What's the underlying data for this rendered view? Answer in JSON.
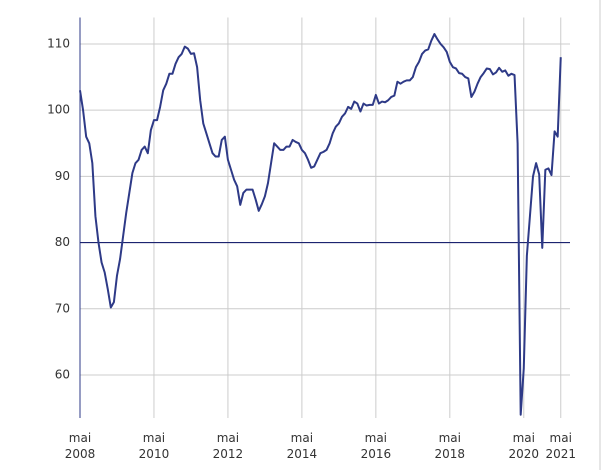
{
  "chart_data": {
    "type": "line",
    "color": "#2e3a87",
    "x": [
      "2008-05",
      "2008-06",
      "2008-07",
      "2008-08",
      "2008-09",
      "2008-10",
      "2008-11",
      "2008-12",
      "2009-01",
      "2009-02",
      "2009-03",
      "2009-04",
      "2009-05",
      "2009-06",
      "2009-07",
      "2009-08",
      "2009-09",
      "2009-10",
      "2009-11",
      "2009-12",
      "2010-01",
      "2010-02",
      "2010-03",
      "2010-04",
      "2010-05",
      "2010-06",
      "2010-07",
      "2010-08",
      "2010-09",
      "2010-10",
      "2010-11",
      "2010-12",
      "2011-01",
      "2011-02",
      "2011-03",
      "2011-04",
      "2011-05",
      "2011-06",
      "2011-07",
      "2011-08",
      "2011-09",
      "2011-10",
      "2011-11",
      "2011-12",
      "2012-01",
      "2012-02",
      "2012-03",
      "2012-04",
      "2012-05",
      "2012-06",
      "2012-07",
      "2012-08",
      "2012-09",
      "2012-10",
      "2012-11",
      "2012-12",
      "2013-01",
      "2013-02",
      "2013-03",
      "2013-04",
      "2013-05",
      "2013-06",
      "2013-07",
      "2013-08",
      "2013-09",
      "2013-10",
      "2013-11",
      "2013-12",
      "2014-01",
      "2014-02",
      "2014-03",
      "2014-04",
      "2014-05",
      "2014-06",
      "2014-07",
      "2014-08",
      "2014-09",
      "2014-10",
      "2014-11",
      "2014-12",
      "2015-01",
      "2015-02",
      "2015-03",
      "2015-04",
      "2015-05",
      "2015-06",
      "2015-07",
      "2015-08",
      "2015-09",
      "2015-10",
      "2015-11",
      "2015-12",
      "2016-01",
      "2016-02",
      "2016-03",
      "2016-04",
      "2016-05",
      "2016-06",
      "2016-07",
      "2016-08",
      "2016-09",
      "2016-10",
      "2016-11",
      "2016-12",
      "2017-01",
      "2017-02",
      "2017-03",
      "2017-04",
      "2017-05",
      "2017-06",
      "2017-07",
      "2017-08",
      "2017-09",
      "2017-10",
      "2017-11",
      "2017-12",
      "2018-01",
      "2018-02",
      "2018-03",
      "2018-04",
      "2018-05",
      "2018-06",
      "2018-07",
      "2018-08",
      "2018-09",
      "2018-10",
      "2018-11",
      "2018-12",
      "2019-01",
      "2019-02",
      "2019-03",
      "2019-04",
      "2019-05",
      "2019-06",
      "2019-07",
      "2019-08",
      "2019-09",
      "2019-10",
      "2019-11",
      "2019-12",
      "2020-01",
      "2020-02",
      "2020-03",
      "2020-04",
      "2020-05",
      "2020-06",
      "2020-07",
      "2020-08",
      "2020-09",
      "2020-10",
      "2020-11",
      "2020-12",
      "2021-01",
      "2021-02",
      "2021-03",
      "2021-04",
      "2021-05"
    ],
    "values": [
      103,
      100,
      96,
      95,
      92,
      84,
      80,
      77,
      75.5,
      73,
      70.2,
      71,
      75,
      77.5,
      81,
      84.5,
      87.5,
      90.5,
      92,
      92.5,
      94,
      94.5,
      93.5,
      97,
      98.5,
      98.5,
      100.5,
      103,
      104,
      105.5,
      105.5,
      107,
      108,
      108.5,
      109.6,
      109.3,
      108.5,
      108.6,
      106.5,
      101.5,
      98,
      96.5,
      95,
      93.5,
      93,
      93,
      95.5,
      96,
      92.5,
      91,
      89.5,
      88.5,
      85.7,
      87.5,
      88,
      88,
      88,
      86.5,
      84.8,
      85.8,
      87,
      89,
      92,
      95,
      94.5,
      94,
      94,
      94.5,
      94.5,
      95.5,
      95.2,
      95,
      94,
      93.5,
      92.5,
      91.3,
      91.5,
      92.5,
      93.5,
      93.7,
      94,
      95,
      96.5,
      97.5,
      98,
      99,
      99.5,
      100.5,
      100.2,
      101.3,
      101,
      99.8,
      101,
      100.7,
      100.8,
      100.8,
      102.3,
      101,
      101.3,
      101.2,
      101.5,
      102,
      102.2,
      104.3,
      104,
      104.3,
      104.5,
      104.5,
      105,
      106.5,
      107.3,
      108.5,
      109,
      109.2,
      110.5,
      111.5,
      110.7,
      110,
      109.5,
      108.8,
      107.3,
      106.5,
      106.3,
      105.6,
      105.5,
      105,
      104.8,
      102,
      102.8,
      104,
      105,
      105.6,
      106.3,
      106.2,
      105.4,
      105.7,
      106.4,
      105.8,
      106,
      105.2,
      105.5,
      105.3,
      95,
      54,
      61,
      78,
      84,
      90,
      92,
      90.3,
      79.2,
      91,
      91.2,
      90.2,
      96.8,
      96,
      108
    ],
    "xlim": [
      "2008-05",
      "2021-08"
    ],
    "xticks": [
      {
        "value": "2008-05",
        "label": "mai 2008"
      },
      {
        "value": "2010-05",
        "label": "mai 2010"
      },
      {
        "value": "2012-05",
        "label": "mai 2012"
      },
      {
        "value": "2014-05",
        "label": "mai 2014"
      },
      {
        "value": "2016-05",
        "label": "mai 2016"
      },
      {
        "value": "2018-05",
        "label": "mai 2018"
      },
      {
        "value": "2020-05",
        "label": "mai 2020"
      },
      {
        "value": "2021-05",
        "label": "mai 2021"
      }
    ],
    "ylim": [
      53.5,
      114
    ],
    "yticks": [
      60,
      70,
      80,
      90,
      100,
      110
    ],
    "grid": true,
    "hline": 80
  }
}
